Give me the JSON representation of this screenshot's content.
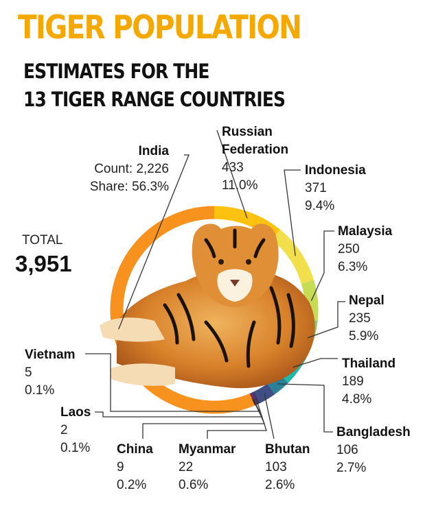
{
  "header": {
    "title": "TIGER POPULATION",
    "subtitle_line1": "ESTIMATES FOR THE",
    "subtitle_line2": "13 TIGER RANGE COUNTRIES"
  },
  "total": {
    "label": "TOTAL",
    "value": "3,951"
  },
  "labels": {
    "india": {
      "name": "India",
      "count": "Count: 2,226",
      "share": "Share: 56.3%"
    },
    "russia": {
      "name1": "Russian",
      "name2": "Federation",
      "count": "433",
      "share": "11.0%"
    },
    "indonesia": {
      "name": "Indonesia",
      "count": "371",
      "share": "9.4%"
    },
    "malaysia": {
      "name": "Malaysia",
      "count": "250",
      "share": "6.3%"
    },
    "nepal": {
      "name": "Nepal",
      "count": "235",
      "share": "5.9%"
    },
    "thailand": {
      "name": "Thailand",
      "count": "189",
      "share": "4.8%"
    },
    "bangladesh": {
      "name": "Bangladesh",
      "count": "106",
      "share": "2.7%"
    },
    "bhutan": {
      "name": "Bhutan",
      "count": "103",
      "share": "2.6%"
    },
    "myanmar": {
      "name": "Myanmar",
      "count": "22",
      "share": "0.6%"
    },
    "china": {
      "name": "China",
      "count": "9",
      "share": "0.2%"
    },
    "laos": {
      "name": "Laos",
      "count": "2",
      "share": "0.1%"
    },
    "vietnam": {
      "name": "Vietnam",
      "count": "5",
      "share": "0.1%"
    }
  },
  "chart_data": {
    "type": "pie",
    "style": "donut",
    "title": "TIGER POPULATION",
    "subtitle": "ESTIMATES FOR THE 13 TIGER RANGE COUNTRIES",
    "total": 3951,
    "slices": [
      {
        "name": "Russian Federation",
        "value": 433,
        "share": 11.0,
        "color": "#fdc210"
      },
      {
        "name": "Indonesia",
        "value": 371,
        "share": 9.4,
        "color": "#f1df4c"
      },
      {
        "name": "Malaysia",
        "value": 250,
        "share": 6.3,
        "color": "#c6dc57"
      },
      {
        "name": "Nepal",
        "value": 235,
        "share": 5.9,
        "color": "#8ccc68"
      },
      {
        "name": "Thailand",
        "value": 189,
        "share": 4.8,
        "color": "#1cb9a9"
      },
      {
        "name": "Bangladesh",
        "value": 106,
        "share": 2.7,
        "color": "#2b7f96"
      },
      {
        "name": "Bhutan",
        "value": 103,
        "share": 2.6,
        "color": "#3f4f85"
      },
      {
        "name": "Myanmar",
        "value": 22,
        "share": 0.6,
        "color": "#463772"
      },
      {
        "name": "China",
        "value": 9,
        "share": 0.2,
        "color": "#56255e"
      },
      {
        "name": "Laos",
        "value": 2,
        "share": 0.1,
        "color": "#7a1f46"
      },
      {
        "name": "Vietnam",
        "value": 5,
        "share": 0.1,
        "color": "#a32a2a"
      },
      {
        "name": "India",
        "value": 2226,
        "share": 56.3,
        "color": "#f7921e"
      }
    ]
  }
}
